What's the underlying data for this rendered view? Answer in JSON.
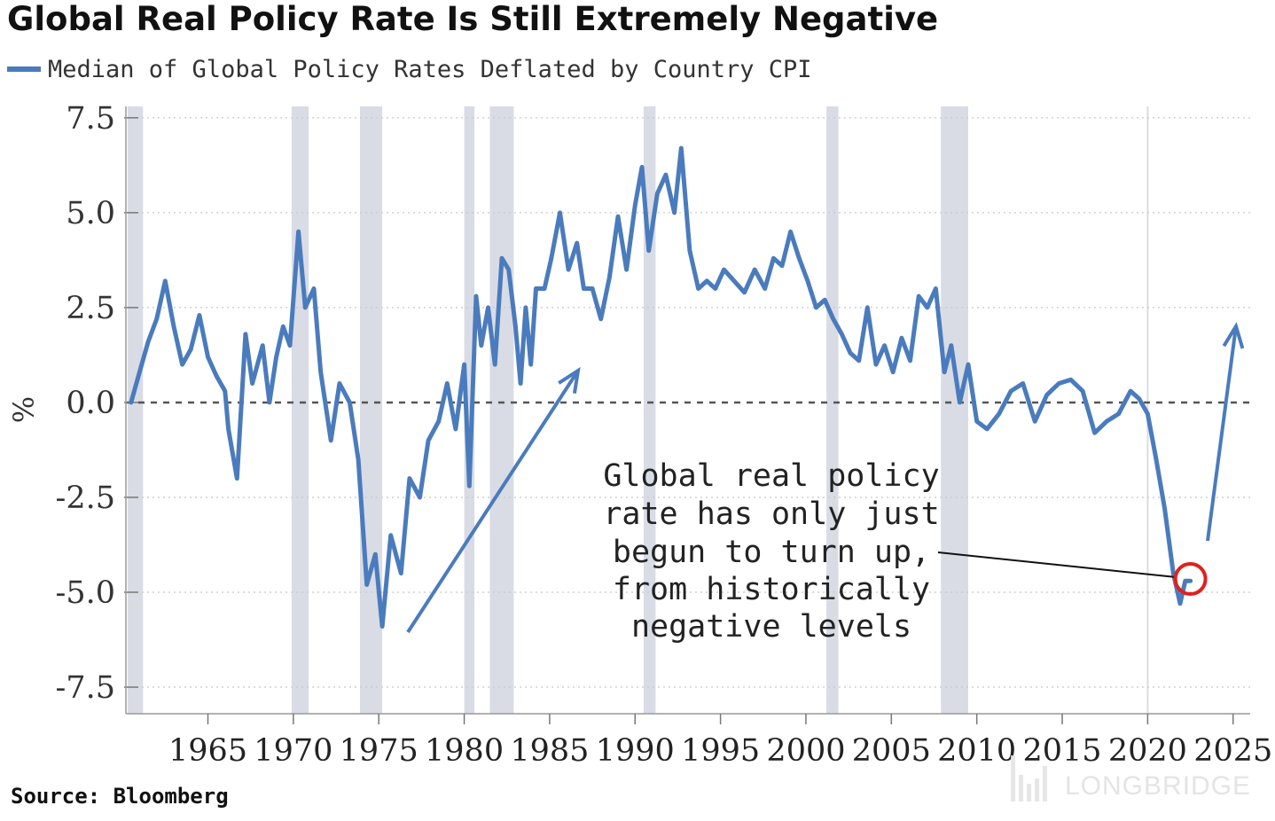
{
  "title": "Global Real Policy Rate Is Still Extremely Negative",
  "legend_label": "Median of Global Policy Rates Deflated by Country CPI",
  "source": "Source: Bloomberg",
  "watermark": "LONGBRIDGE",
  "colors": {
    "series": "#4a7bbd",
    "recession_band": "#d9dce5",
    "zero_line": "#555555",
    "highlight_circle": "#e0201c"
  },
  "chart_data": {
    "type": "line",
    "ylabel": "%",
    "xlim": [
      1960.2,
      2026
    ],
    "ylim": [
      -8.2,
      7.8
    ],
    "y_ticks": [
      7.5,
      5.0,
      2.5,
      0.0,
      -2.5,
      -5.0,
      -7.5
    ],
    "y_tick_labels": [
      "7.5",
      "5.0",
      "2.5",
      "0.0",
      "-2.5",
      "-5.0",
      "-7.5"
    ],
    "x_ticks": [
      1965,
      1970,
      1975,
      1980,
      1985,
      1990,
      1995,
      2000,
      2005,
      2010,
      2015,
      2020,
      2025
    ],
    "x_tick_labels": [
      "1965",
      "1970",
      "1975",
      "1980",
      "1985",
      "1990",
      "1995",
      "2000",
      "2005",
      "2010",
      "2015",
      "2020",
      "2025"
    ],
    "grid": "horizontal dotted",
    "zero_line": "dashed",
    "legend_position": "top-left",
    "recession_bands": [
      [
        1960.3,
        1961.2
      ],
      [
        1969.9,
        1970.9
      ],
      [
        1973.9,
        1975.2
      ],
      [
        1980.0,
        1980.6
      ],
      [
        1981.5,
        1982.9
      ],
      [
        1990.5,
        1991.2
      ],
      [
        2001.2,
        2001.9
      ],
      [
        2007.9,
        2009.5
      ]
    ],
    "series": [
      {
        "x": [
          1960.5,
          1961.0,
          1961.5,
          1962.0,
          1962.5,
          1963.0,
          1963.5,
          1964.0,
          1964.5,
          1965.0,
          1965.5,
          1966.0,
          1966.2,
          1966.7,
          1967.2,
          1967.6,
          1968.2,
          1968.6,
          1969.0,
          1969.4,
          1969.8,
          1970.3,
          1970.7,
          1971.2,
          1971.6,
          1972.2,
          1972.7,
          1973.3,
          1973.8,
          1974.3,
          1974.8,
          1975.2,
          1975.7,
          1976.3,
          1976.8,
          1977.4,
          1977.9,
          1978.5,
          1979.0,
          1979.5,
          1980.0,
          1980.3,
          1980.7,
          1981.0,
          1981.4,
          1981.8,
          1982.2,
          1982.6,
          1983.0,
          1983.3,
          1983.6,
          1983.9,
          1984.2,
          1984.7,
          1985.1,
          1985.6,
          1986.1,
          1986.6,
          1987.0,
          1987.5,
          1988.0,
          1988.5,
          1989.0,
          1989.5,
          1990.0,
          1990.4,
          1990.8,
          1991.3,
          1991.8,
          1992.3,
          1992.7,
          1993.2,
          1993.7,
          1994.2,
          1994.7,
          1995.2,
          1995.8,
          1996.4,
          1997.0,
          1997.6,
          1998.1,
          1998.6,
          1999.1,
          1999.6,
          2000.1,
          2000.6,
          2001.1,
          2001.6,
          2002.1,
          2002.6,
          2003.1,
          2003.6,
          2004.1,
          2004.6,
          2005.1,
          2005.6,
          2006.1,
          2006.6,
          2007.1,
          2007.6,
          2008.1,
          2008.5,
          2009.0,
          2009.5,
          2010.0,
          2010.6,
          2011.3,
          2012.0,
          2012.7,
          2013.4,
          2014.1,
          2014.8,
          2015.5,
          2016.2,
          2016.9,
          2017.6,
          2018.3,
          2019.0,
          2019.5,
          2020.0,
          2020.5,
          2021.0,
          2021.5,
          2021.9,
          2022.2,
          2022.5
        ],
        "y": [
          0.0,
          0.8,
          1.6,
          2.2,
          3.2,
          2.0,
          1.0,
          1.4,
          2.3,
          1.2,
          0.7,
          0.3,
          -0.7,
          -2.0,
          1.8,
          0.5,
          1.5,
          0.0,
          1.2,
          2.0,
          1.5,
          4.5,
          2.5,
          3.0,
          0.8,
          -1.0,
          0.5,
          0.0,
          -1.5,
          -4.8,
          -4.0,
          -5.9,
          -3.5,
          -4.5,
          -2.0,
          -2.5,
          -1.0,
          -0.5,
          0.5,
          -0.7,
          1.0,
          -2.2,
          2.8,
          1.5,
          2.5,
          1.0,
          3.8,
          3.5,
          2.0,
          0.5,
          2.5,
          1.0,
          3.0,
          3.0,
          3.8,
          5.0,
          3.5,
          4.2,
          3.0,
          3.0,
          2.2,
          3.3,
          4.9,
          3.5,
          5.2,
          6.2,
          4.0,
          5.5,
          6.0,
          5.0,
          6.7,
          4.0,
          3.0,
          3.2,
          3.0,
          3.5,
          3.2,
          2.9,
          3.5,
          3.0,
          3.8,
          3.6,
          4.5,
          3.8,
          3.2,
          2.5,
          2.7,
          2.2,
          1.8,
          1.3,
          1.1,
          2.5,
          1.0,
          1.5,
          0.8,
          1.7,
          1.1,
          2.8,
          2.5,
          3.0,
          0.8,
          1.5,
          0.0,
          1.0,
          -0.5,
          -0.7,
          -0.3,
          0.3,
          0.5,
          -0.5,
          0.2,
          0.5,
          0.6,
          0.3,
          -0.8,
          -0.5,
          -0.3,
          0.3,
          0.1,
          -0.3,
          -1.5,
          -2.8,
          -4.5,
          -5.3,
          -4.7,
          -4.7
        ]
      }
    ],
    "annotations": [
      {
        "lines": [
          "Global real policy",
          "rate has only just",
          "begun to turn up,",
          "from historically",
          "negative levels"
        ]
      }
    ]
  }
}
